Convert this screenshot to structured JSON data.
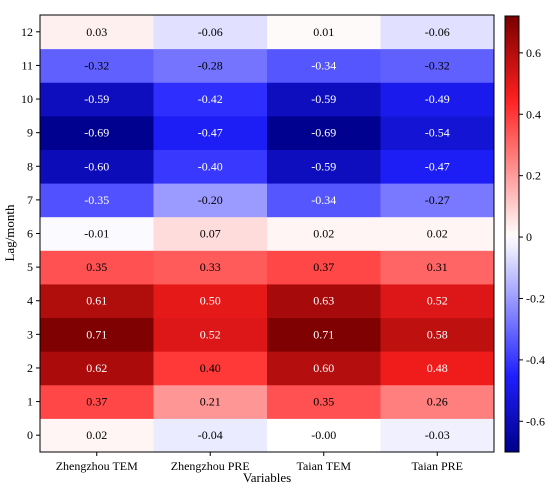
{
  "chart_data": {
    "type": "heatmap",
    "xlabel": "Variables",
    "ylabel": "Lag/month",
    "x_categories": [
      "Zhengzhou TEM",
      "Zhengzhou PRE",
      "Taian TEM",
      "Taian PRE"
    ],
    "y_categories": [
      "0",
      "1",
      "2",
      "3",
      "4",
      "5",
      "6",
      "7",
      "8",
      "9",
      "10",
      "11",
      "12"
    ],
    "values": [
      [
        0.02,
        -0.04,
        -0.0,
        -0.03
      ],
      [
        0.37,
        0.21,
        0.35,
        0.26
      ],
      [
        0.62,
        0.4,
        0.6,
        0.48
      ],
      [
        0.71,
        0.52,
        0.71,
        0.58
      ],
      [
        0.61,
        0.5,
        0.63,
        0.52
      ],
      [
        0.35,
        0.33,
        0.37,
        0.31
      ],
      [
        -0.01,
        0.07,
        0.02,
        0.02
      ],
      [
        -0.35,
        -0.2,
        -0.34,
        -0.27
      ],
      [
        -0.6,
        -0.4,
        -0.59,
        -0.47
      ],
      [
        -0.69,
        -0.47,
        -0.69,
        -0.54
      ],
      [
        -0.59,
        -0.42,
        -0.59,
        -0.49
      ],
      [
        -0.32,
        -0.28,
        -0.34,
        -0.32
      ],
      [
        0.03,
        -0.06,
        0.01,
        -0.06
      ]
    ],
    "cell_labels": [
      [
        "0.02",
        "-0.04",
        "-0.00",
        "-0.03"
      ],
      [
        "0.37",
        "0.21",
        "0.35",
        "0.26"
      ],
      [
        "0.62",
        "0.40",
        "0.60",
        "0.48"
      ],
      [
        "0.71",
        "0.52",
        "0.71",
        "0.58"
      ],
      [
        "0.61",
        "0.50",
        "0.63",
        "0.52"
      ],
      [
        "0.35",
        "0.33",
        "0.37",
        "0.31"
      ],
      [
        "-0.01",
        "0.07",
        "0.02",
        "0.02"
      ],
      [
        "-0.35",
        "-0.20",
        "-0.34",
        "-0.27"
      ],
      [
        "-0.60",
        "-0.40",
        "-0.59",
        "-0.47"
      ],
      [
        "-0.69",
        "-0.47",
        "-0.69",
        "-0.54"
      ],
      [
        "-0.59",
        "-0.42",
        "-0.59",
        "-0.49"
      ],
      [
        "-0.32",
        "-0.28",
        "-0.34",
        "-0.32"
      ],
      [
        "0.03",
        "-0.06",
        "0.01",
        "-0.06"
      ]
    ],
    "colorbar": {
      "range": [
        -0.7,
        0.72
      ],
      "ticks": [
        0.6,
        0.4,
        0.2,
        0,
        -0.2,
        -0.4,
        -0.6
      ],
      "tick_labels": [
        "0.6",
        "0.4",
        "0.2",
        "0",
        "-0.2",
        "-0.4",
        "-0.6"
      ],
      "colormap": "blue-white-red",
      "colors": {
        "low": "#00008b",
        "mid_low": "#1f1fff",
        "mid": "#ffffff",
        "mid_high": "#ff1f1f",
        "high": "#7a0000"
      }
    },
    "grid": false,
    "colorbar_position": "right"
  }
}
